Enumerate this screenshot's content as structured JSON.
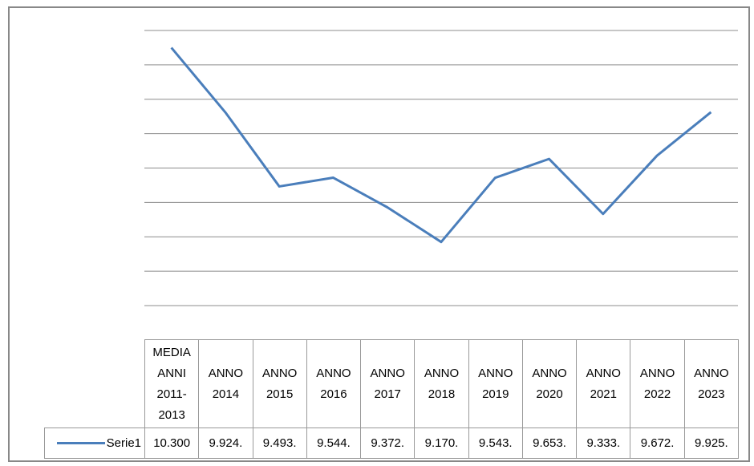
{
  "chart_data": {
    "type": "line",
    "categories": [
      "MEDIA ANNI 2011-2013",
      "ANNO 2014",
      "ANNO 2015",
      "ANNO 2016",
      "ANNO 2017",
      "ANNO 2018",
      "ANNO 2019",
      "ANNO 2020",
      "ANNO 2021",
      "ANNO 2022",
      "ANNO 2023"
    ],
    "series": [
      {
        "name": "Serie1",
        "color": "#4a7ebb",
        "values": [
          10300,
          9924,
          9493,
          9544,
          9372,
          9170,
          9543,
          9653,
          9333,
          9672,
          9925
        ],
        "value_labels": [
          "10.300",
          "9.924.",
          "9.493.",
          "9.544.",
          "9.372.",
          "9.170.",
          "9.543.",
          "9.653.",
          "9.333.",
          "9.672.",
          "9.925."
        ]
      }
    ],
    "ylim": [
      8800,
      10400
    ],
    "yticks": [
      8800,
      9000,
      9200,
      9400,
      9600,
      9800,
      10000,
      10200,
      10400
    ],
    "grid": true
  }
}
